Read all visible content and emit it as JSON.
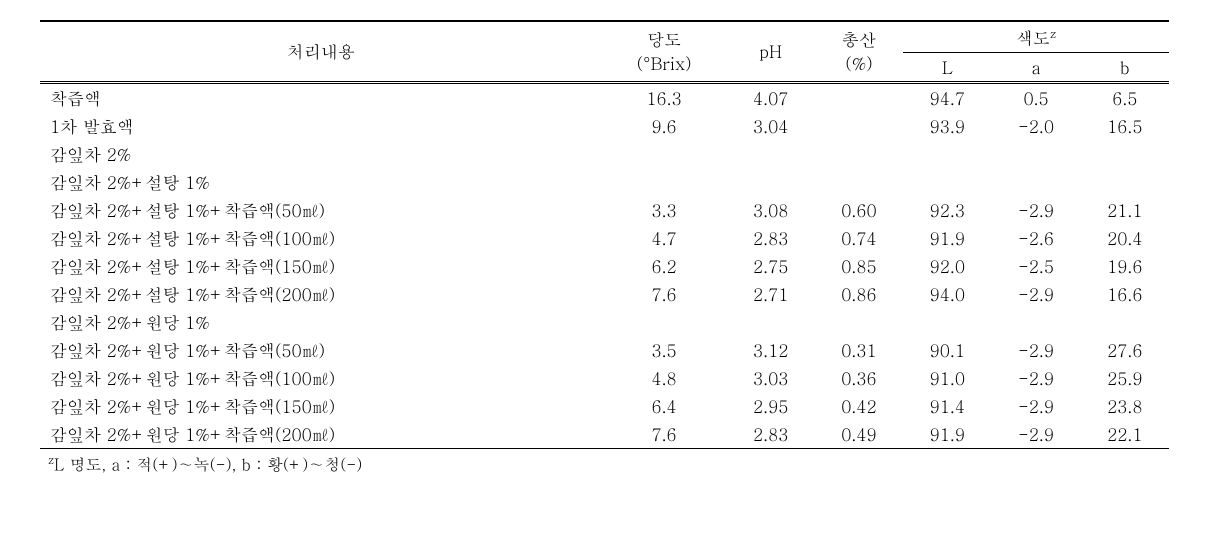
{
  "headers": {
    "col1": "처리내용",
    "col2_line1": "당도",
    "col2_line2": "(°Brix)",
    "col3": "pH",
    "col4_line1": "총산",
    "col4_line2": "(%)",
    "col5_group": "색도",
    "col5_sup": "z",
    "col5_L": "L",
    "col5_a": "a",
    "col5_b": "b"
  },
  "rows": [
    {
      "label": "착즙액",
      "brix": "16.3",
      "ph": "4.07",
      "acid": "",
      "L": "94.7",
      "a": "0.5",
      "b": "6.5"
    },
    {
      "label": "1차 발효액",
      "brix": "9.6",
      "ph": "3.04",
      "acid": "",
      "L": "93.9",
      "a": "-2.0",
      "b": "16.5"
    },
    {
      "label": "감잎차 2%",
      "brix": "",
      "ph": "",
      "acid": "",
      "L": "",
      "a": "",
      "b": ""
    },
    {
      "label": "감잎차 2%+설탕 1%",
      "brix": "",
      "ph": "",
      "acid": "",
      "L": "",
      "a": "",
      "b": ""
    },
    {
      "label": "감잎차 2%+설탕 1%+착즙액(50㎖)",
      "brix": "3.3",
      "ph": "3.08",
      "acid": "0.60",
      "L": "92.3",
      "a": "-2.9",
      "b": "21.1"
    },
    {
      "label": "감잎차 2%+설탕 1%+착즙액(100㎖)",
      "brix": "4.7",
      "ph": "2.83",
      "acid": "0.74",
      "L": "91.9",
      "a": "-2.6",
      "b": "20.4"
    },
    {
      "label": "감잎차 2%+설탕 1%+착즙액(150㎖)",
      "brix": "6.2",
      "ph": "2.75",
      "acid": "0.85",
      "L": "92.0",
      "a": "-2.5",
      "b": "19.6"
    },
    {
      "label": "감잎차 2%+설탕 1%+착즙액(200㎖)",
      "brix": "7.6",
      "ph": "2.71",
      "acid": "0.86",
      "L": "94.0",
      "a": "-2.9",
      "b": "16.6"
    },
    {
      "label": "감잎차 2%+원당 1%",
      "brix": "",
      "ph": "",
      "acid": "",
      "L": "",
      "a": "",
      "b": ""
    },
    {
      "label": "감잎차 2%+원당 1%+착즙액(50㎖)",
      "brix": "3.5",
      "ph": "3.12",
      "acid": "0.31",
      "L": "90.1",
      "a": "-2.9",
      "b": "27.6"
    },
    {
      "label": "감잎차 2%+원당 1%+착즙액(100㎖)",
      "brix": "4.8",
      "ph": "3.03",
      "acid": "0.36",
      "L": "91.0",
      "a": "-2.9",
      "b": "25.9"
    },
    {
      "label": "감잎차 2%+원당 1%+착즙액(150㎖)",
      "brix": "6.4",
      "ph": "2.95",
      "acid": "0.42",
      "L": "91.4",
      "a": "-2.9",
      "b": "23.8"
    },
    {
      "label": "감잎차 2%+원당 1%+착즙액(200㎖)",
      "brix": "7.6",
      "ph": "2.83",
      "acid": "0.49",
      "L": "91.9",
      "a": "-2.9",
      "b": "22.1"
    }
  ],
  "footnote": {
    "sup": "z",
    "text": "L 명도, a : 적(+)∼녹(-), b : 황(+)∼청(-)"
  }
}
